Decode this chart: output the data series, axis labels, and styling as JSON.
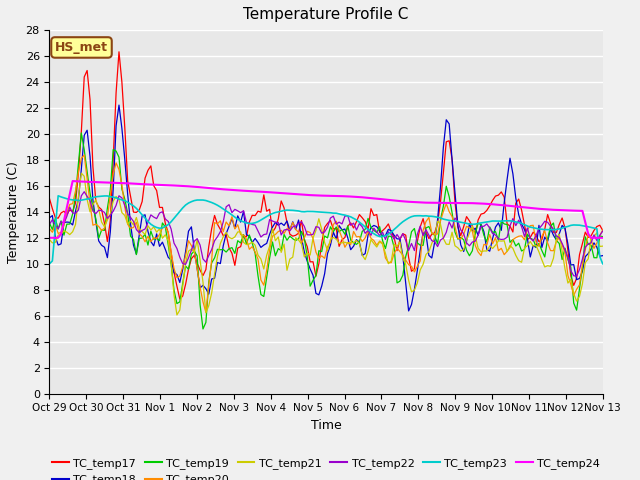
{
  "title": "Temperature Profile C",
  "xlabel": "Time",
  "ylabel": "Temperature (C)",
  "ylim": [
    0,
    28
  ],
  "yticks": [
    0,
    2,
    4,
    6,
    8,
    10,
    12,
    14,
    16,
    18,
    20,
    22,
    24,
    26,
    28
  ],
  "xtick_labels": [
    "Oct 29",
    "Oct 30",
    "Oct 31",
    "Nov 1",
    "Nov 2",
    "Nov 3",
    "Nov 4",
    "Nov 5",
    "Nov 6",
    "Nov 7",
    "Nov 8",
    "Nov 9",
    "Nov 10",
    "Nov 11",
    "Nov 12",
    "Nov 13"
  ],
  "annotation_text": "HS_met",
  "annotation_color": "#8B4513",
  "annotation_bg": "#FFFF99",
  "series_colors": {
    "TC_temp17": "#FF0000",
    "TC_temp18": "#0000CC",
    "TC_temp19": "#00CC00",
    "TC_temp20": "#FF8C00",
    "TC_temp21": "#CCCC00",
    "TC_temp22": "#9900CC",
    "TC_temp23": "#00CCCC",
    "TC_temp24": "#FF00FF"
  },
  "fig_bg": "#F0F0F0",
  "plot_bg": "#E8E8E8",
  "grid_color": "#FFFFFF"
}
